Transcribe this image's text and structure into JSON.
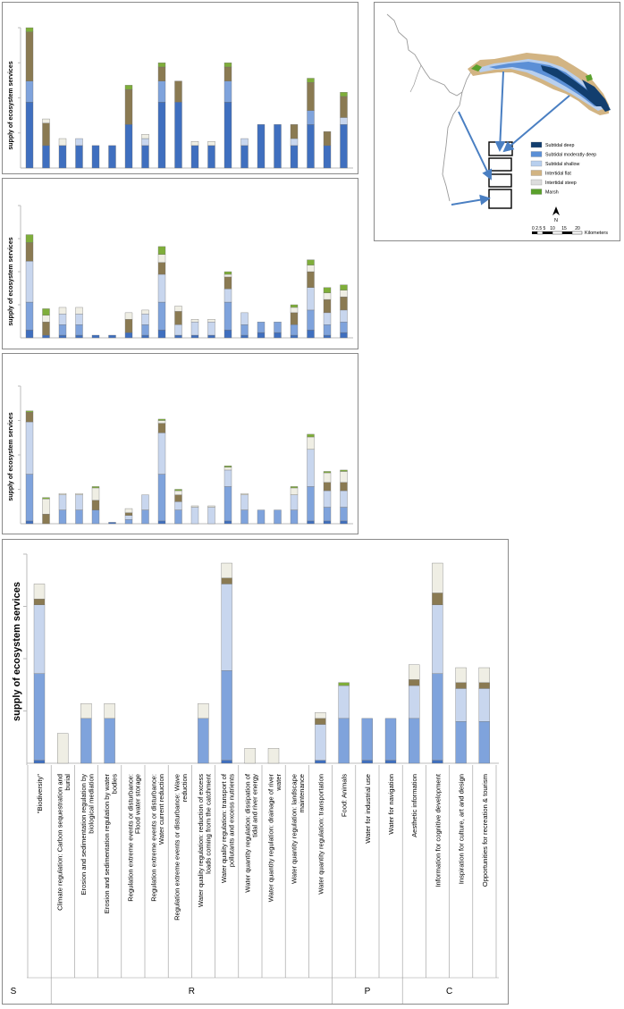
{
  "colors": {
    "s1": "#3f6fbf",
    "s2": "#7fa3dc",
    "s3": "#c8d6ee",
    "s4": "#8a7a52",
    "s5": "#efeee4",
    "s6": "#7fae3a",
    "axis": "#bbbbbb",
    "subtidal_deep": "#123e6e",
    "subtidal_moderately_deep": "#5b8fd6",
    "subtidal_shallow": "#b8cfee",
    "intertidal_flat": "#d2b483",
    "intertidal_steep": "#dcdcdc",
    "marsh": "#5aa02c",
    "river": "#9a9a9a",
    "arrow": "#4a7fc2"
  },
  "chart_data": [
    {
      "id": "panel1",
      "type": "bar",
      "stacked": true,
      "ylabel": "supply of ecosystem services",
      "ylim": [
        0,
        100
      ],
      "values": [
        [
          47,
          16,
          16,
          16,
          16,
          16,
          31,
          16,
          47,
          47,
          16,
          16,
          47,
          16,
          31,
          31,
          16,
          31,
          16,
          31
        ],
        [
          15,
          0,
          0,
          0,
          0,
          0,
          0,
          0,
          15,
          0,
          0,
          0,
          15,
          0,
          0,
          0,
          0,
          10,
          0,
          0
        ],
        [
          0,
          0,
          0,
          5,
          0,
          0,
          0,
          5,
          0,
          0,
          0,
          0,
          0,
          5,
          0,
          0,
          5,
          0,
          0,
          5
        ],
        [
          35,
          16,
          0,
          0,
          0,
          0,
          25,
          0,
          10,
          15,
          0,
          0,
          10,
          0,
          0,
          0,
          10,
          20,
          10,
          15
        ],
        [
          0,
          3,
          5,
          0,
          0,
          0,
          0,
          3,
          0,
          0,
          3,
          3,
          0,
          0,
          0,
          0,
          0,
          0,
          0,
          0
        ],
        [
          3,
          0,
          0,
          0,
          0,
          0,
          3,
          0,
          3,
          0,
          0,
          0,
          3,
          0,
          0,
          0,
          0,
          3,
          0,
          3
        ]
      ]
    },
    {
      "id": "panel2",
      "type": "bar",
      "stacked": true,
      "ylabel": "supply of ecosystem services",
      "ylim": [
        0,
        100
      ],
      "values": [
        [
          6,
          2,
          2,
          2,
          2,
          2,
          4,
          2,
          6,
          2,
          2,
          2,
          6,
          2,
          4,
          4,
          2,
          6,
          2,
          4
        ],
        [
          21,
          0,
          8,
          8,
          0,
          0,
          0,
          8,
          21,
          0,
          0,
          0,
          21,
          8,
          8,
          8,
          8,
          15,
          8,
          8
        ],
        [
          31,
          0,
          8,
          8,
          0,
          0,
          0,
          8,
          21,
          8,
          10,
          10,
          10,
          9,
          0,
          0,
          0,
          17,
          9,
          9
        ],
        [
          14,
          10,
          0,
          0,
          0,
          0,
          10,
          0,
          9,
          10,
          0,
          0,
          9,
          0,
          0,
          0,
          9,
          12,
          10,
          10
        ],
        [
          0,
          5,
          5,
          5,
          0,
          0,
          5,
          3,
          6,
          4,
          2,
          2,
          2,
          0,
          0,
          0,
          4,
          5,
          5,
          5
        ],
        [
          6,
          5,
          0,
          0,
          0,
          0,
          0,
          0,
          6,
          0,
          0,
          0,
          2,
          0,
          0,
          0,
          2,
          4,
          4,
          4
        ]
      ]
    },
    {
      "id": "panel3",
      "type": "bar",
      "stacked": true,
      "ylabel": "supply of ecosystem services",
      "ylim": [
        0,
        100
      ],
      "values": [
        [
          2,
          0,
          0,
          0,
          0,
          1,
          0,
          0,
          2,
          0,
          0,
          0,
          2,
          0,
          0,
          0,
          0,
          2,
          2,
          2
        ],
        [
          34,
          0,
          10,
          10,
          10,
          0,
          3,
          10,
          34,
          10,
          0,
          0,
          25,
          10,
          10,
          10,
          10,
          25,
          10,
          10
        ],
        [
          38,
          0,
          11,
          11,
          0,
          0,
          3,
          11,
          30,
          6,
          12,
          12,
          12,
          11,
          0,
          0,
          11,
          27,
          12,
          12
        ],
        [
          7,
          7,
          0,
          0,
          7,
          0,
          2,
          0,
          7,
          5,
          0,
          0,
          0,
          0,
          0,
          0,
          0,
          0,
          6,
          6
        ],
        [
          0,
          11,
          1,
          1,
          9,
          0,
          3,
          0,
          2,
          3,
          1,
          1,
          2,
          1,
          0,
          0,
          5,
          9,
          7,
          8
        ],
        [
          1,
          1,
          0,
          0,
          1,
          0,
          0,
          0,
          1,
          1,
          0,
          0,
          1,
          0,
          0,
          0,
          1,
          2,
          1,
          1
        ]
      ]
    },
    {
      "id": "panel4",
      "type": "bar",
      "stacked": true,
      "ylabel": "supply of ecosystem services",
      "ylim": [
        0,
        70
      ],
      "categories": [
        "\"Biodiversity\"",
        "Climate regulation: Carbon sequestration and burial",
        "Erosion and sedimentation regulation by biological mediation",
        "Erosion and sedimentation regulation by water bodies",
        "Regulation extreme events or disturbance: Flood water storage",
        "Regulation extreme events or disturbance: Water current reduction",
        "Regulation extreme events or disturbance: Wave reduction",
        "Water quality regulation: reduction of excess loads coming from the catchment",
        "Water quality regulation: transport of pollutants and excess nutrients",
        "Water quantity regulation: dissipation of tidal and river energy",
        "Water quantity regulation: drainage of river water",
        "Water quantity regulation: landscape maintenance",
        "Water quantity regulation: transportation",
        "Food: Animals",
        "Water for industrial use",
        "Water for navigation",
        "Aesthetic information",
        "Information for cognitive development",
        "Inspiration for culture, art and design",
        "Opportunities for recreation & tourism"
      ],
      "groups": [
        {
          "label": "S",
          "start": 0,
          "end": 0
        },
        {
          "label": "R",
          "start": 1,
          "end": 12
        },
        {
          "label": "P",
          "start": 13,
          "end": 15
        },
        {
          "label": "C",
          "start": 16,
          "end": 19
        }
      ],
      "values": [
        [
          1,
          0,
          0,
          0,
          0,
          0,
          0,
          0,
          1,
          0,
          0,
          0,
          1,
          0,
          1,
          1,
          0,
          1,
          0,
          0
        ],
        [
          29,
          0,
          15,
          15,
          0,
          0,
          0,
          15,
          30,
          0,
          0,
          0,
          0,
          15,
          14,
          14,
          15,
          29,
          14,
          14
        ],
        [
          23,
          0,
          0,
          0,
          0,
          0,
          0,
          0,
          29,
          0,
          0,
          0,
          12,
          11,
          0,
          0,
          11,
          23,
          11,
          11
        ],
        [
          2,
          0,
          0,
          0,
          0,
          0,
          0,
          0,
          2,
          0,
          0,
          0,
          2,
          0,
          0,
          0,
          2,
          4,
          2,
          2
        ],
        [
          5,
          10,
          5,
          5,
          0,
          0,
          0,
          5,
          5,
          5,
          5,
          0,
          2,
          0,
          0,
          0,
          5,
          10,
          5,
          5
        ],
        [
          0,
          0,
          0,
          0,
          0,
          0,
          0,
          0,
          0,
          0,
          0,
          0,
          0,
          1,
          0,
          0,
          0,
          0,
          0,
          0
        ]
      ]
    }
  ],
  "map": {
    "legend": [
      {
        "key": "subtidal_deep",
        "label": "Subtidal deep"
      },
      {
        "key": "subtidal_moderately_deep",
        "label": "Subtidal moderatly deep"
      },
      {
        "key": "subtidal_shallow",
        "label": "Subtidal shallow"
      },
      {
        "key": "intertidal_flat",
        "label": "Intertidal flat"
      },
      {
        "key": "intertidal_steep",
        "label": "Intertidal steep"
      },
      {
        "key": "marsh",
        "label": "Marsh"
      }
    ],
    "north": "N",
    "scale_ticks": [
      "0 2.5 5",
      "10",
      "15",
      "20"
    ],
    "scale_unit": "Kilometers"
  }
}
